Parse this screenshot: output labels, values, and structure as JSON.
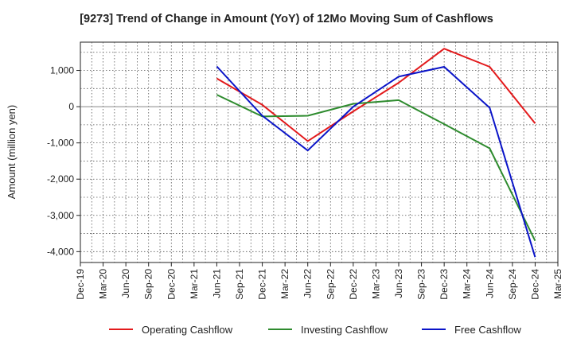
{
  "chart_data": {
    "type": "line",
    "title": "[9273]  Trend of Change in Amount (YoY) of 12Mo Moving Sum of Cashflows",
    "xlabel": "",
    "ylabel": "Amount (million yen)",
    "ylim": [
      -4300,
      1780
    ],
    "yticks": [
      1000,
      0,
      -1000,
      -2000,
      -3000,
      -4000
    ],
    "ytick_labels": [
      "1,000",
      "0",
      "-1,000",
      "-2,000",
      "-3,000",
      "-4,000"
    ],
    "categories": [
      "Dec-19",
      "Mar-20",
      "Jun-20",
      "Sep-20",
      "Dec-20",
      "Mar-21",
      "Jun-21",
      "Sep-21",
      "Dec-21",
      "Mar-22",
      "Jun-22",
      "Sep-22",
      "Dec-22",
      "Mar-23",
      "Jun-23",
      "Sep-23",
      "Dec-23",
      "Mar-24",
      "Jun-24",
      "Sep-24",
      "Dec-24",
      "Mar-25"
    ],
    "grid": true,
    "legend_position": "bottom",
    "series": [
      {
        "name": "Operating Cashflow",
        "color": "#e31a1c",
        "points": [
          {
            "x": "Jun-21",
            "y": 780
          },
          {
            "x": "Dec-21",
            "y": 50
          },
          {
            "x": "Jun-22",
            "y": -950
          },
          {
            "x": "Dec-22",
            "y": -130
          },
          {
            "x": "Jun-23",
            "y": 660
          },
          {
            "x": "Dec-23",
            "y": 1600
          },
          {
            "x": "Jun-24",
            "y": 1100
          },
          {
            "x": "Dec-24",
            "y": -460
          }
        ]
      },
      {
        "name": "Investing Cashflow",
        "color": "#2e8b2e",
        "points": [
          {
            "x": "Jun-21",
            "y": 330
          },
          {
            "x": "Dec-21",
            "y": -270
          },
          {
            "x": "Jun-22",
            "y": -250
          },
          {
            "x": "Dec-22",
            "y": 80
          },
          {
            "x": "Jun-23",
            "y": 180
          },
          {
            "x": "Dec-23",
            "y": -480
          },
          {
            "x": "Jun-24",
            "y": -1150
          },
          {
            "x": "Dec-24",
            "y": -3700
          }
        ]
      },
      {
        "name": "Free Cashflow",
        "color": "#0a14c8",
        "points": [
          {
            "x": "Jun-21",
            "y": 1110
          },
          {
            "x": "Dec-21",
            "y": -250
          },
          {
            "x": "Jun-22",
            "y": -1210
          },
          {
            "x": "Dec-22",
            "y": 0
          },
          {
            "x": "Jun-23",
            "y": 830
          },
          {
            "x": "Dec-23",
            "y": 1100
          },
          {
            "x": "Jun-24",
            "y": -30
          },
          {
            "x": "Dec-24",
            "y": -4150
          }
        ]
      }
    ]
  }
}
